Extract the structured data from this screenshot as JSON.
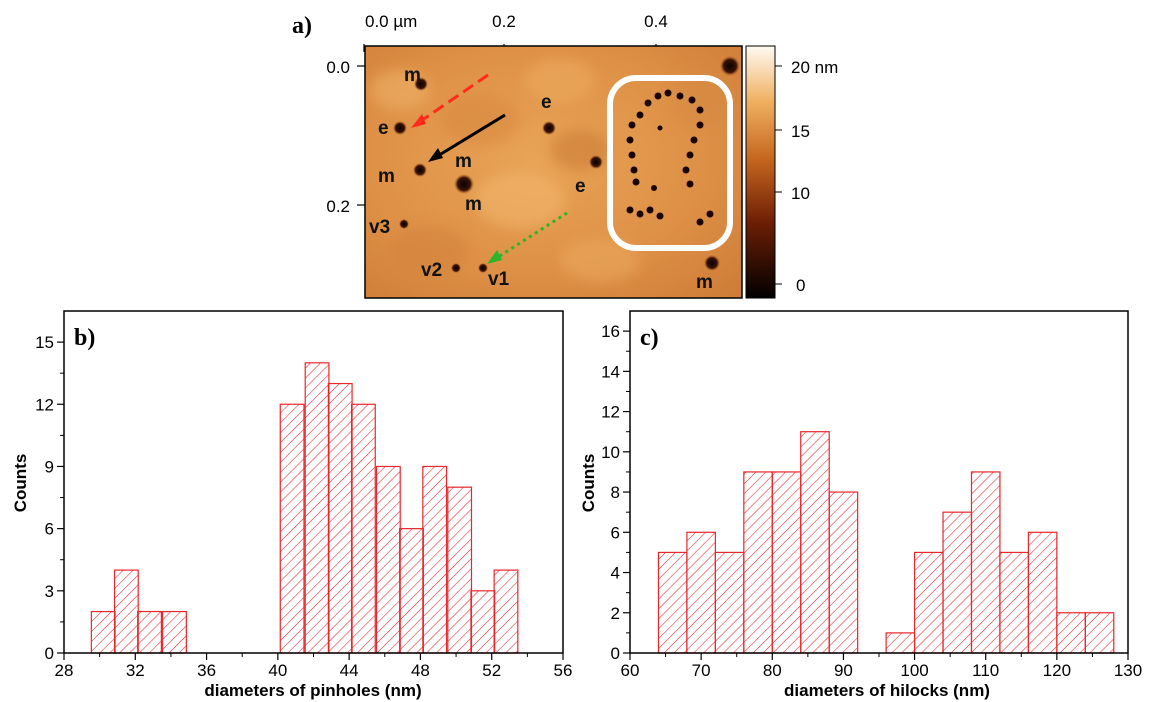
{
  "chart_data": [
    {
      "panel": "a)",
      "type": "heatmap",
      "x_ticks": [
        "0.0 µm",
        "0.2",
        "0.4"
      ],
      "y_ticks": [
        "0.0",
        "0.2"
      ],
      "colorbar": {
        "ticks": [
          "20 nm",
          "15",
          "10",
          "0"
        ],
        "range": [
          0,
          20
        ],
        "unit": "nm"
      },
      "annotations": [
        "m",
        "m",
        "m",
        "m",
        "m",
        "e",
        "e",
        "e",
        "v1",
        "v2",
        "v3"
      ],
      "colors": {
        "low": "#000000",
        "mid": "#c0641e",
        "high": "#fff8ee",
        "arrow_red": "#ff2a1a",
        "arrow_black": "#000000",
        "arrow_green": "#2ab52a",
        "box": "#ffffff"
      }
    },
    {
      "panel": "b)",
      "type": "bar",
      "xlabel": "diameters of pinholes (nm)",
      "ylabel": "Counts",
      "xlim": [
        28,
        56
      ],
      "ylim": [
        0,
        16.5
      ],
      "bin_width": 1.33,
      "x_ticks": [
        28,
        32,
        36,
        40,
        44,
        48,
        52,
        56
      ],
      "y_ticks": [
        0,
        3,
        6,
        9,
        12,
        15
      ],
      "bins": [
        {
          "x": 30.2,
          "count": 2
        },
        {
          "x": 31.5,
          "count": 4
        },
        {
          "x": 32.8,
          "count": 2
        },
        {
          "x": 34.2,
          "count": 2
        },
        {
          "x": 40.8,
          "count": 12
        },
        {
          "x": 42.2,
          "count": 14
        },
        {
          "x": 43.5,
          "count": 13
        },
        {
          "x": 44.8,
          "count": 12
        },
        {
          "x": 46.2,
          "count": 9
        },
        {
          "x": 47.5,
          "count": 6
        },
        {
          "x": 48.8,
          "count": 9
        },
        {
          "x": 50.2,
          "count": 8
        },
        {
          "x": 51.5,
          "count": 3
        },
        {
          "x": 52.8,
          "count": 4
        }
      ],
      "color": "#e8262b"
    },
    {
      "panel": "c)",
      "type": "bar",
      "xlabel": "diameters of hilocks (nm)",
      "ylabel": "Counts",
      "xlim": [
        60,
        130
      ],
      "ylim": [
        0,
        17
      ],
      "bin_width": 4,
      "x_ticks": [
        60,
        70,
        80,
        90,
        100,
        110,
        120,
        130
      ],
      "y_ticks": [
        0,
        2,
        4,
        6,
        8,
        10,
        12,
        14,
        16
      ],
      "bins": [
        {
          "x": 66,
          "count": 5
        },
        {
          "x": 70,
          "count": 6
        },
        {
          "x": 74,
          "count": 5
        },
        {
          "x": 78,
          "count": 9
        },
        {
          "x": 82,
          "count": 9
        },
        {
          "x": 86,
          "count": 11
        },
        {
          "x": 90,
          "count": 8
        },
        {
          "x": 98,
          "count": 1
        },
        {
          "x": 102,
          "count": 5
        },
        {
          "x": 106,
          "count": 7
        },
        {
          "x": 110,
          "count": 9
        },
        {
          "x": 114,
          "count": 5
        },
        {
          "x": 118,
          "count": 6
        },
        {
          "x": 122,
          "count": 2
        },
        {
          "x": 126,
          "count": 2
        }
      ],
      "color": "#e8262b"
    }
  ]
}
